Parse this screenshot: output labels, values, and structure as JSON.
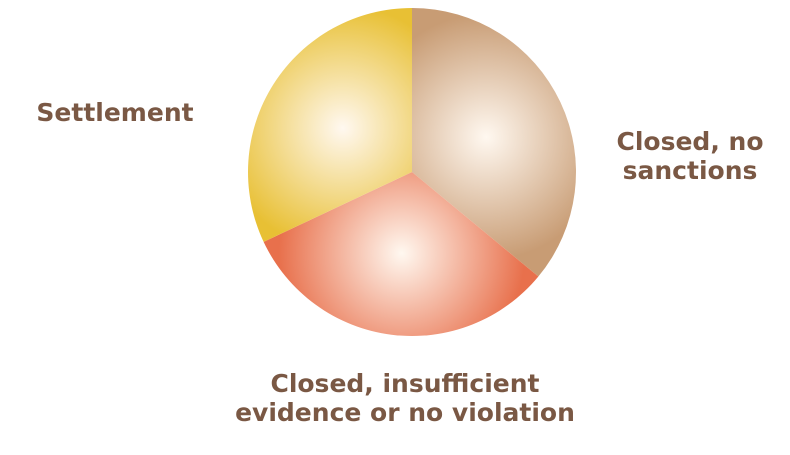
{
  "chart_data": {
    "type": "pie",
    "categories": [
      "Closed, no sanctions",
      "Closed, insufficient evidence or no violation",
      "Settlement"
    ],
    "values": [
      36,
      32,
      32
    ],
    "colors": [
      "#c89c74",
      "#e8704c",
      "#e8c034"
    ]
  }
}
